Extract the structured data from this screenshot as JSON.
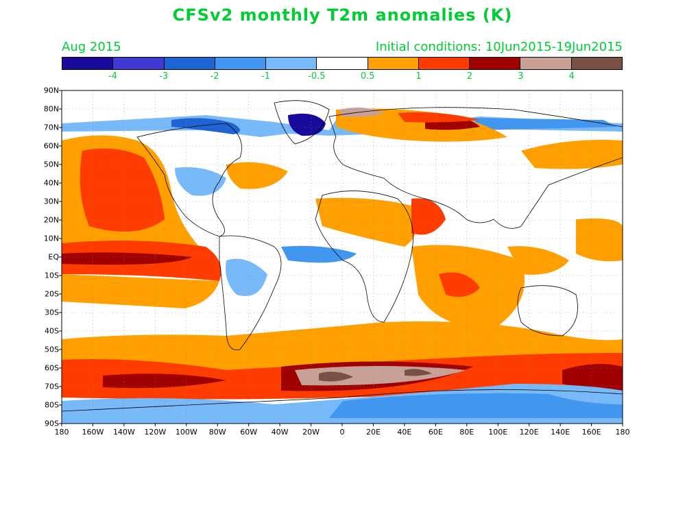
{
  "title": "CFSv2 monthly T2m anomalies (K)",
  "subtitle_left": "Aug 2015",
  "subtitle_right": "Initial conditions: 10Jun2015-19Jun2015",
  "colorbar": {
    "colors": [
      "#1a0a9c",
      "#4038d2",
      "#1e64d2",
      "#4196f0",
      "#78b9fa",
      "#ffffff",
      "#ffa000",
      "#ff3c00",
      "#a00000",
      "#c8a096",
      "#785046"
    ],
    "labels": [
      "-4",
      "-3",
      "-2",
      "-1",
      "-0.5",
      "0.5",
      "1",
      "2",
      "3",
      "4"
    ]
  },
  "lat_labels": [
    "90N",
    "80N",
    "70N",
    "60N",
    "50N",
    "40N",
    "30N",
    "20N",
    "10N",
    "EQ",
    "10S",
    "20S",
    "30S",
    "40S",
    "50S",
    "60S",
    "70S",
    "80S",
    "90S"
  ],
  "lon_labels": [
    "180",
    "160W",
    "140W",
    "120W",
    "100W",
    "80W",
    "60W",
    "40W",
    "20W",
    "0",
    "20E",
    "40E",
    "60E",
    "80E",
    "100E",
    "120E",
    "140E",
    "160E",
    "180"
  ]
}
